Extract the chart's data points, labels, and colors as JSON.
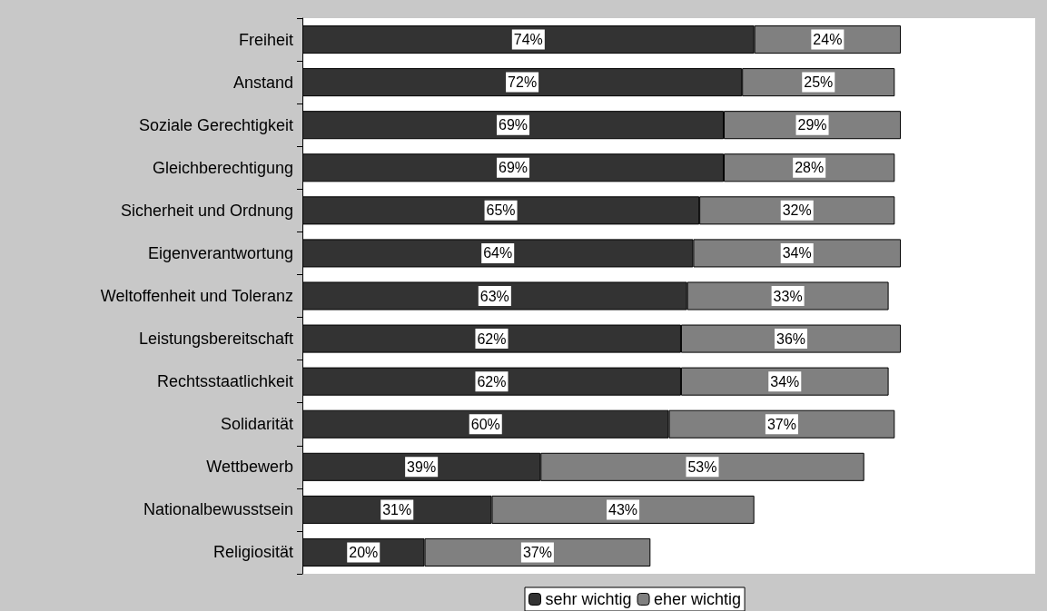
{
  "chart_data": {
    "type": "bar",
    "orientation": "horizontal",
    "stacked": true,
    "xlim": [
      0,
      120
    ],
    "legend": "bottom",
    "grid": false,
    "tick_labels": "y",
    "categories": [
      "Freiheit",
      "Anstand",
      "Soziale Gerechtigkeit",
      "Gleichberechtigung",
      "Sicherheit und Ordnung",
      "Eigenverantwortung",
      "Weltoffenheit und Toleranz",
      "Leistungsbereitschaft",
      "Rechtsstaatlichkeit",
      "Solidarität",
      "Wettbewerb",
      "Nationalbewusstsein",
      "Religiosität"
    ],
    "series": [
      {
        "name": "sehr wichtig",
        "color": "#333333",
        "values": [
          74,
          72,
          69,
          69,
          65,
          64,
          63,
          62,
          62,
          60,
          39,
          31,
          20
        ],
        "value_labels": [
          "74%",
          "72%",
          "69%",
          "69%",
          "65%",
          "64%",
          "63%",
          "62%",
          "62%",
          "60%",
          "39%",
          "31%",
          "20%"
        ]
      },
      {
        "name": "eher wichtig",
        "color": "#808080",
        "values": [
          24,
          25,
          29,
          28,
          32,
          34,
          33,
          36,
          34,
          37,
          53,
          43,
          37
        ],
        "value_labels": [
          "24%",
          "25%",
          "29%",
          "28%",
          "32%",
          "34%",
          "33%",
          "36%",
          "34%",
          "37%",
          "53%",
          "43%",
          "37%"
        ]
      }
    ]
  }
}
